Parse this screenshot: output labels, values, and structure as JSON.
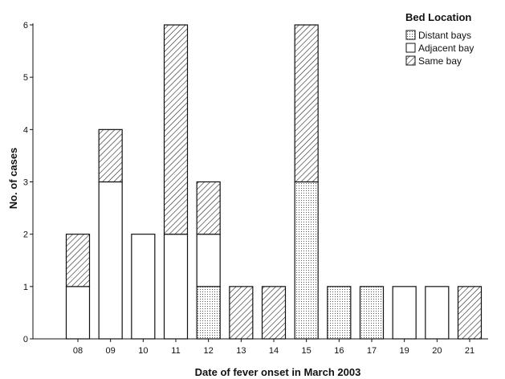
{
  "chart_data": {
    "type": "bar",
    "stacked": true,
    "xlabel": "Date of fever onset in March 2003",
    "ylabel": "No. of cases",
    "ylim": [
      0,
      6
    ],
    "yticks": [
      "0",
      "1",
      "2",
      "3",
      "4",
      "5",
      "6"
    ],
    "categories": [
      "08",
      "09",
      "10",
      "11",
      "12",
      "13",
      "14",
      "15",
      "16",
      "17",
      "19",
      "20",
      "21"
    ],
    "grid": false,
    "legend": {
      "title": "Bed Location",
      "position": "top-right",
      "entries": [
        "Distant bays",
        "Adjacent bay",
        "Same bay"
      ]
    },
    "series": [
      {
        "name": "Distant bays",
        "pattern": "dotted",
        "values": [
          0,
          0,
          0,
          0,
          1,
          0,
          0,
          3,
          1,
          1,
          0,
          0,
          0
        ]
      },
      {
        "name": "Adjacent bay",
        "pattern": "blank",
        "values": [
          1,
          3,
          2,
          2,
          1,
          0,
          0,
          0,
          0,
          0,
          1,
          1,
          0
        ]
      },
      {
        "name": "Same bay",
        "pattern": "hatched",
        "values": [
          1,
          1,
          0,
          4,
          1,
          1,
          1,
          3,
          0,
          0,
          0,
          0,
          1
        ]
      }
    ]
  }
}
